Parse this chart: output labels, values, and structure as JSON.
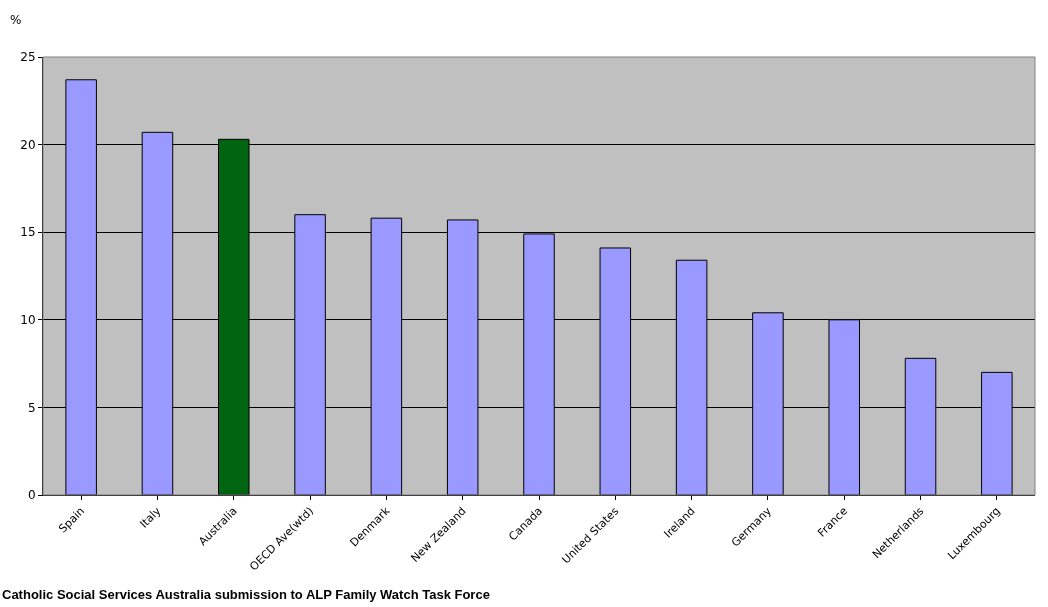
{
  "chart_data": {
    "type": "bar",
    "ylabel": "%",
    "categories": [
      "Spain",
      "Italy",
      "Australia",
      "OECD Ave(wtd)",
      "Denmark",
      "New Zealand",
      "Canada",
      "United States",
      "Ireland",
      "Germany",
      "France",
      "Netherlands",
      "Luxembourg"
    ],
    "values": [
      23.7,
      20.7,
      20.3,
      16.0,
      15.8,
      15.7,
      14.9,
      14.1,
      13.4,
      10.4,
      10.0,
      7.8,
      7.0
    ],
    "colors": [
      "#9999ff",
      "#9999ff",
      "#006411",
      "#9999ff",
      "#9999ff",
      "#9999ff",
      "#9999ff",
      "#9999ff",
      "#9999ff",
      "#9999ff",
      "#9999ff",
      "#9999ff",
      "#9999ff"
    ],
    "ylim": [
      0,
      25
    ],
    "yticks": [
      0,
      5,
      10,
      15,
      20,
      25
    ],
    "grid": "y",
    "annotations": [
      "Catholic Social Services Australia submission to ALP Family Watch Task Force"
    ]
  }
}
